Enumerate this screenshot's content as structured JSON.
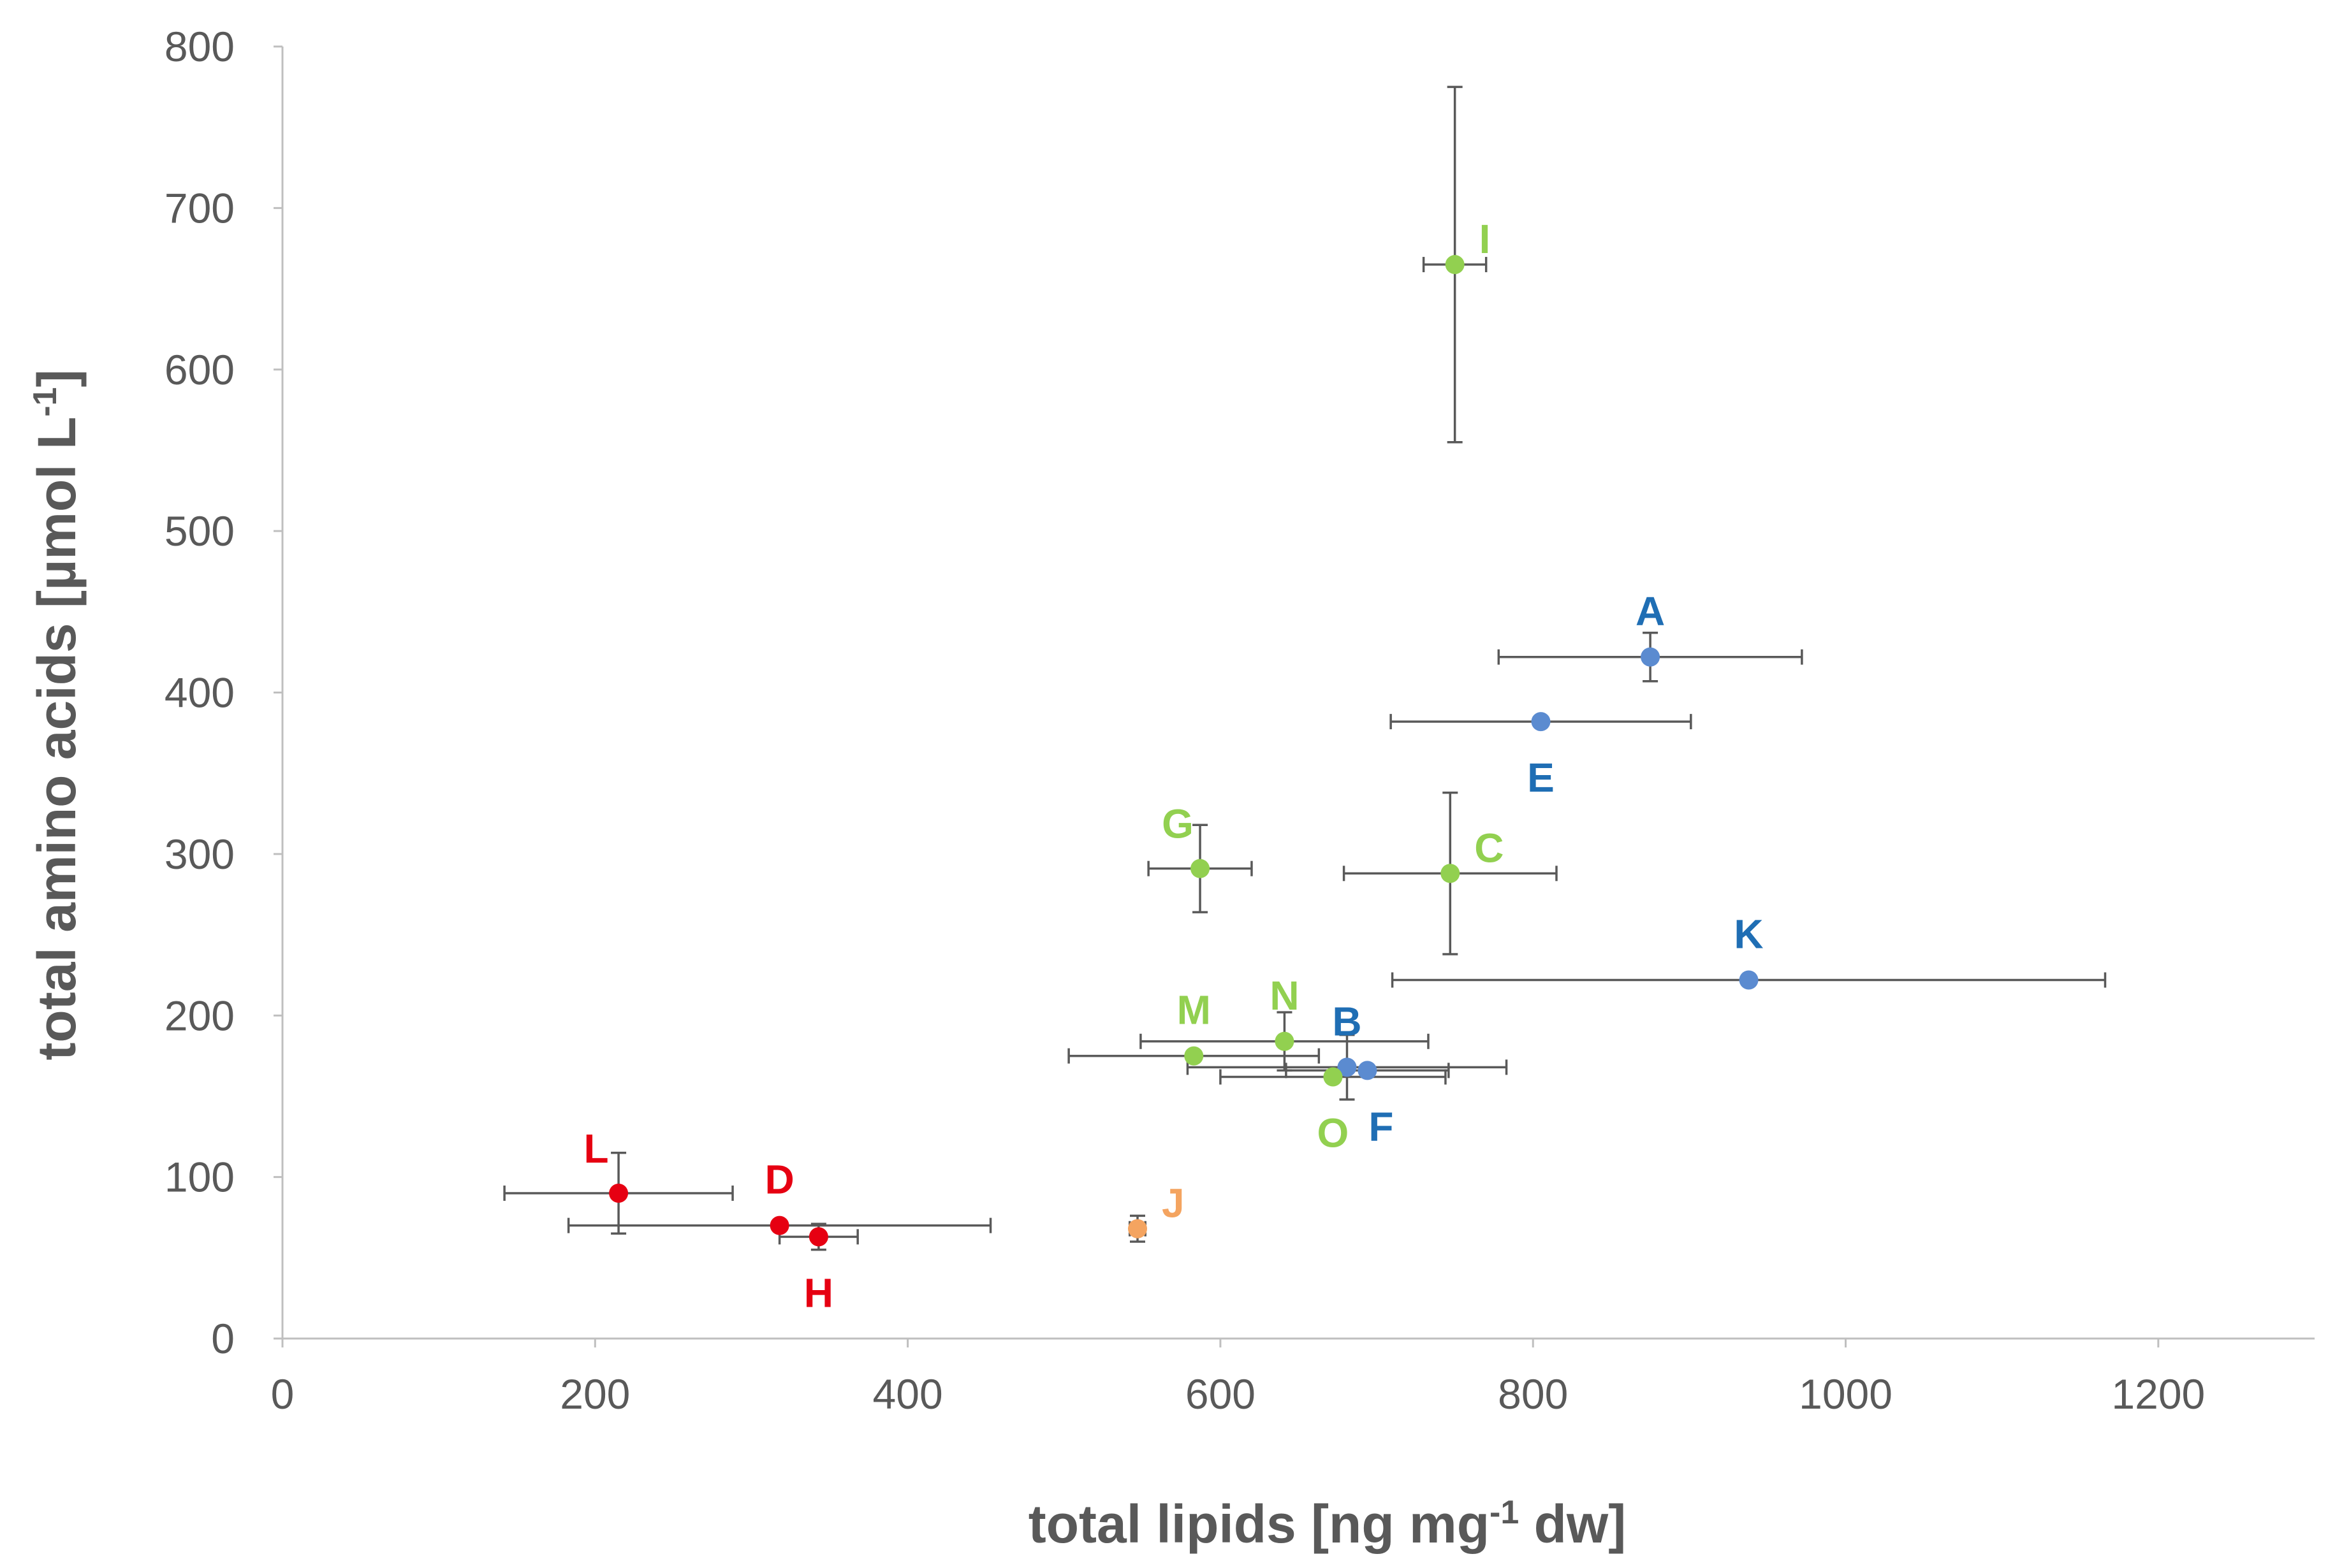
{
  "chart_data": {
    "type": "scatter",
    "title": "",
    "xlabel": "total lipids [ng mg",
    "xlabel_sup": "-1",
    "xlabel_end": " dw]",
    "ylabel": "total amino acids [µmol L",
    "ylabel_sup": "-1",
    "ylabel_end": "]",
    "xlim": [
      0,
      1300
    ],
    "ylim": [
      0,
      800
    ],
    "x_ticks": [
      0,
      200,
      400,
      600,
      800,
      1000,
      1200
    ],
    "y_ticks": [
      0,
      100,
      200,
      300,
      400,
      500,
      600,
      700,
      800
    ],
    "x_tick_labels": [
      "0",
      "200",
      "400",
      "600",
      "800",
      "1000",
      "1200"
    ],
    "y_tick_labels": [
      "0",
      "100",
      "200",
      "300",
      "400",
      "500",
      "600",
      "700",
      "800"
    ],
    "grid": false,
    "colors": {
      "green": "#92D050",
      "blue_marker": "#5B8BD0",
      "blue_label": "#1F6EB4",
      "red": "#E60012",
      "orange": "#F4A460",
      "errorbar": "#595959",
      "axis": "#BFBFBF",
      "text": "#595959"
    },
    "points": [
      {
        "label": "I",
        "x": 750,
        "y": 665,
        "xerr": 20,
        "yerr": 110,
        "group": "green",
        "label_pos": "right"
      },
      {
        "label": "A",
        "x": 875,
        "y": 422,
        "xerr": 97,
        "yerr": 15,
        "group": "blue",
        "label_pos": "above"
      },
      {
        "label": "E",
        "x": 805,
        "y": 382,
        "xerr": 96,
        "yerr": 0,
        "group": "blue",
        "label_pos": "below"
      },
      {
        "label": "G",
        "x": 587,
        "y": 291,
        "xerr": 33,
        "yerr": 27,
        "group": "green",
        "label_pos": "above-left"
      },
      {
        "label": "C",
        "x": 747,
        "y": 288,
        "xerr": 68,
        "yerr": 50,
        "group": "green",
        "label_pos": "right"
      },
      {
        "label": "K",
        "x": 938,
        "y": 222,
        "xerr": 228,
        "yerr": 0,
        "group": "blue",
        "label_pos": "above"
      },
      {
        "label": "N",
        "x": 641,
        "y": 184,
        "xerr": 92,
        "yerr": 18,
        "group": "green",
        "label_pos": "above"
      },
      {
        "label": "M",
        "x": 583,
        "y": 175,
        "xerr": 80,
        "yerr": 0,
        "group": "green",
        "label_pos": "above"
      },
      {
        "label": "B",
        "x": 681,
        "y": 168,
        "xerr": 102,
        "yerr": 20,
        "group": "blue",
        "label_pos": "above"
      },
      {
        "label": "F",
        "x": 694,
        "y": 166,
        "xerr": 52,
        "yerr": 0,
        "group": "blue",
        "label_pos": "below-right"
      },
      {
        "label": "O",
        "x": 672,
        "y": 162,
        "xerr": 72,
        "yerr": 0,
        "group": "green",
        "label_pos": "below"
      },
      {
        "label": "L",
        "x": 215,
        "y": 90,
        "xerr": 73,
        "yerr": 25,
        "group": "red",
        "label_pos": "above-left"
      },
      {
        "label": "D",
        "x": 318,
        "y": 70,
        "xerr": 135,
        "yerr": 0,
        "group": "red",
        "label_pos": "above"
      },
      {
        "label": "H",
        "x": 343,
        "y": 63,
        "xerr": 25,
        "yerr": 8,
        "group": "red",
        "label_pos": "below"
      },
      {
        "label": "J",
        "x": 547,
        "y": 68,
        "xerr": 5,
        "yerr": 8,
        "group": "orange",
        "label_pos": "right"
      }
    ]
  }
}
